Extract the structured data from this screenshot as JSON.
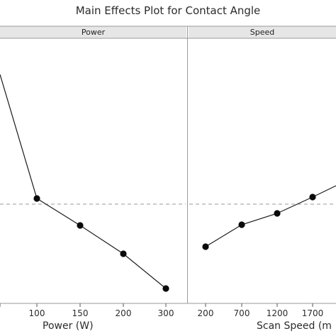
{
  "chart_data": [
    {
      "type": "line",
      "panel_title": "Power",
      "title": "Main Effects Plot for Contact Angle",
      "xlabel": "Power (W)",
      "categories": [
        "100",
        "150",
        "200",
        "300"
      ],
      "values": [
        280,
        318,
        358,
        407
      ],
      "leading_value_off_left": 105,
      "reference_line": 288,
      "y_orientation": "pixel-like reading; axis values not shown"
    },
    {
      "type": "line",
      "panel_title": "Speed",
      "xlabel": "Scan Speed (m",
      "categories": [
        "200",
        "700",
        "1200",
        "1700"
      ],
      "values": [
        348,
        317,
        301,
        278
      ],
      "trailing_continues_right": true,
      "reference_line": 288
    }
  ],
  "style": {
    "line_color": "#1a1a1a",
    "ref_line_color": "#9a9a9a",
    "marker_color": "#0a0a0a"
  }
}
